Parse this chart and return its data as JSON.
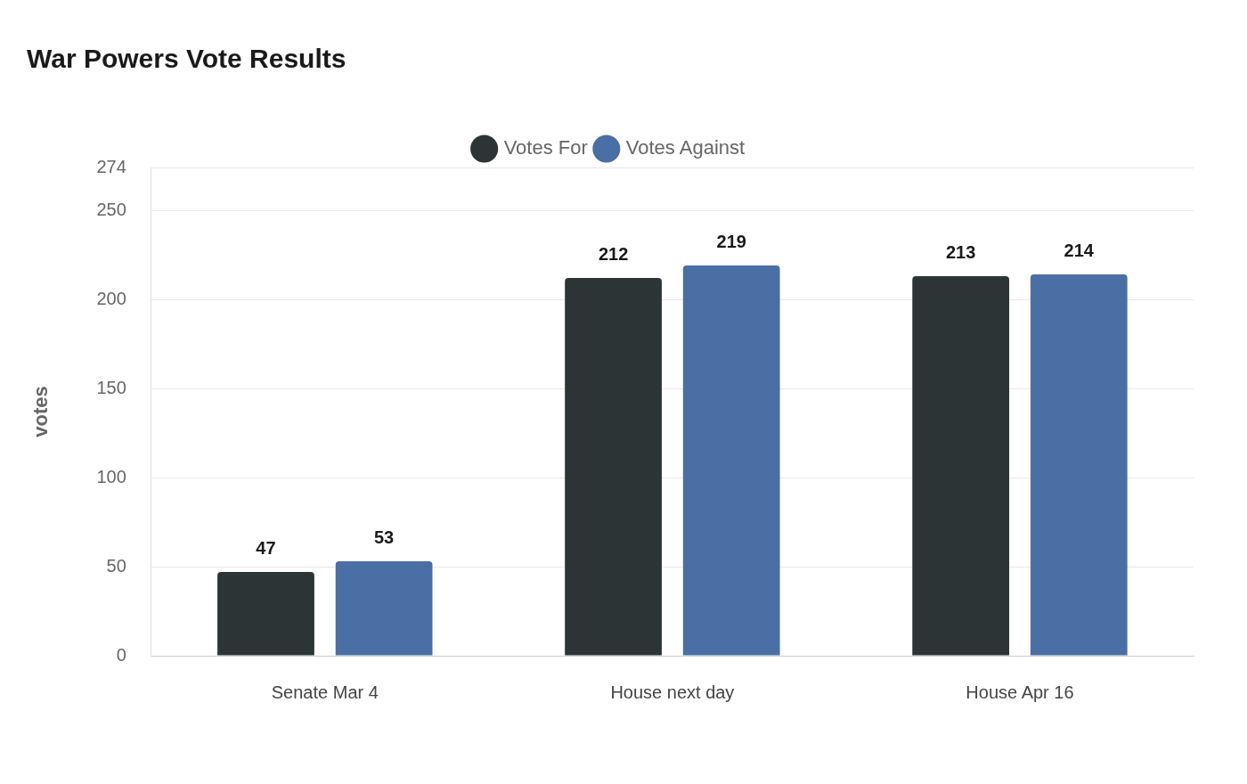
{
  "chart_data": {
    "type": "bar",
    "title": "War Powers Vote Results",
    "ylabel": "votes",
    "categories": [
      "Senate Mar 4",
      "House next day",
      "House Apr 16"
    ],
    "series": [
      {
        "name": "Votes For",
        "color": "#2d3436",
        "values": [
          47,
          212,
          213
        ]
      },
      {
        "name": "Votes Against",
        "color": "#4a6fa5",
        "values": [
          53,
          219,
          214
        ]
      }
    ],
    "ylim": [
      0,
      274
    ],
    "yticks": [
      0,
      50,
      100,
      150,
      200,
      250,
      274
    ],
    "grid": "y",
    "legend": "top",
    "data_labels": true
  }
}
